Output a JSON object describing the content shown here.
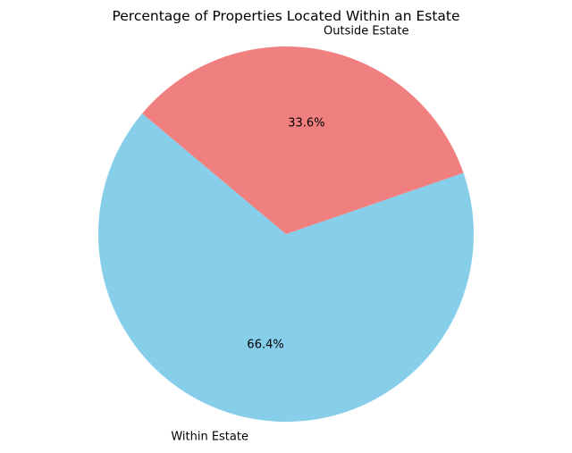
{
  "chart_data": {
    "type": "pie",
    "title": "Percentage of Properties Located Within an Estate",
    "slices": [
      {
        "label": "Within Estate",
        "value": 66.4,
        "pct_label": "66.4%",
        "color": "#87CEEB"
      },
      {
        "label": "Outside Estate",
        "value": 33.6,
        "pct_label": "33.6%",
        "color": "#F08080"
      }
    ],
    "start_angle_deg": 140,
    "legend": "none"
  }
}
